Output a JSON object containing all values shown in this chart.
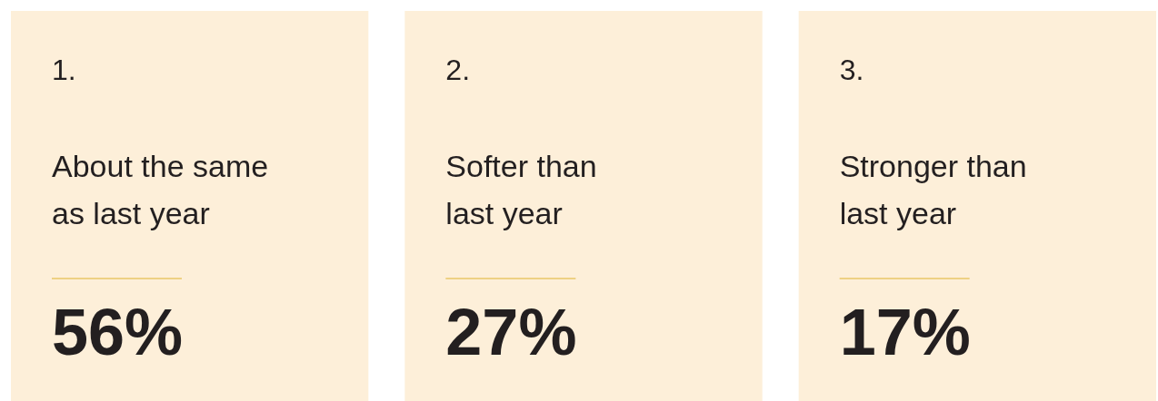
{
  "chart_data": {
    "type": "other",
    "categories": [
      "About the same as last year",
      "Softer than last year",
      "Stronger than last year"
    ],
    "values": [
      56,
      27,
      17
    ],
    "value_labels": [
      "56%",
      "27%",
      "17%"
    ],
    "annotations": [
      "1.",
      "2.",
      "3."
    ],
    "colors": [
      "#fdefd9",
      "#fdefd9",
      "#fdefd9"
    ]
  }
}
